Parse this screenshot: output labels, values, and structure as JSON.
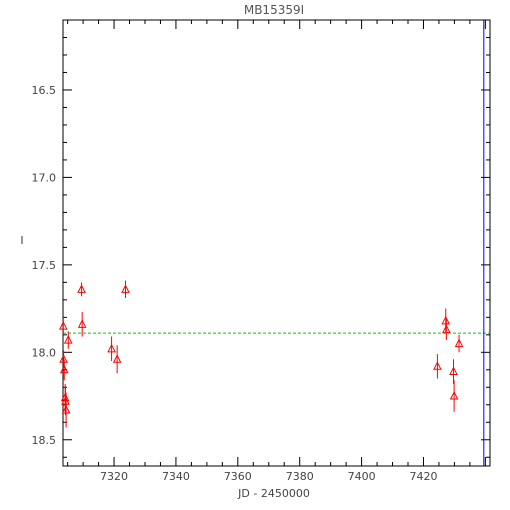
{
  "chart_data": {
    "type": "scatter",
    "title": "MB15359I",
    "xlabel": "JD - 2450000",
    "ylabel": "I",
    "xlim": [
      7303.5,
      7441.5
    ],
    "ylim": [
      18.65,
      16.1
    ],
    "y_inverted": true,
    "x_ticks": [
      "7320",
      "7340",
      "7360",
      "7380",
      "7400",
      "7420"
    ],
    "y_ticks": [
      "16.5",
      "17.0",
      "17.5",
      "18.0",
      "18.5"
    ],
    "reference_line": {
      "y": 17.89,
      "color": "#00cc00",
      "style": "dashed"
    },
    "right_marker_x": 7439.5,
    "colors": {
      "points": "#ff0000",
      "axes": "#000000",
      "reference_line": "#00cc00",
      "right_marker": "#0000ff"
    },
    "series": [
      {
        "marker": "triangle-open",
        "x": [
          7303.6,
          7303.7,
          7303.9,
          7304.2,
          7304.3,
          7304.5,
          7305.2,
          7309.5,
          7309.7,
          7319.2,
          7321.0,
          7323.7,
          7424.5,
          7427.2,
          7427.4,
          7429.7,
          7429.9,
          7431.5
        ],
        "y": [
          17.85,
          18.04,
          18.1,
          18.26,
          18.28,
          18.33,
          17.93,
          17.64,
          17.84,
          17.98,
          18.04,
          17.64,
          18.08,
          17.82,
          17.87,
          18.11,
          18.25,
          17.95
        ],
        "err": [
          0.05,
          0.05,
          0.06,
          0.08,
          0.08,
          0.1,
          0.05,
          0.04,
          0.07,
          0.07,
          0.08,
          0.05,
          0.07,
          0.07,
          0.06,
          0.07,
          0.09,
          0.05
        ]
      }
    ]
  }
}
